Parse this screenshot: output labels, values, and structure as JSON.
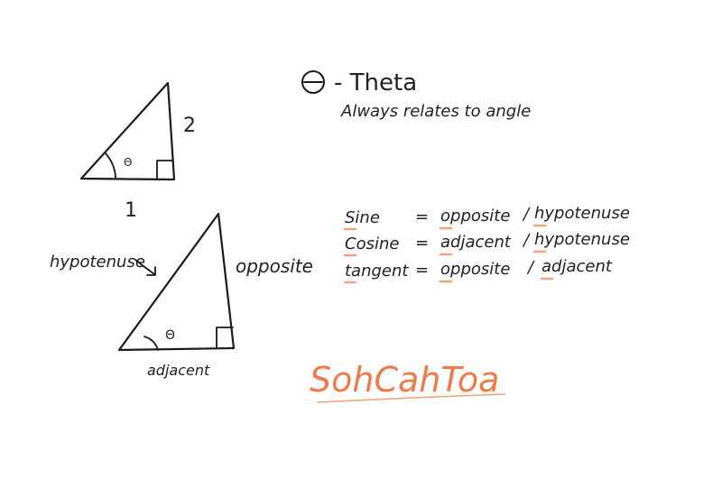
{
  "colors": {
    "ink": "#1a1a1a",
    "accent": "#f07a4a",
    "underline": "#f3a37c"
  },
  "theta_note": {
    "symbol": "Θ",
    "label": "- Theta",
    "subtitle": "Always relates to angle"
  },
  "small_triangle": {
    "angle_label": "Θ",
    "side_label": "2",
    "base_label": "1"
  },
  "large_triangle": {
    "angle_label": "Θ",
    "hypotenuse_label": "hypotenuse",
    "opposite_label": "opposite",
    "adjacent_label": "adjacent"
  },
  "formulas": [
    {
      "name": "Sine",
      "eq": "=",
      "num": "opposite",
      "slash": "/",
      "den": "hypotenuse"
    },
    {
      "name": "Cosine",
      "eq": "=",
      "num": "adjacent",
      "slash": "/",
      "den": "hypotenuse"
    },
    {
      "name": "tangent",
      "eq": "=",
      "num": "opposite",
      "slash": "/",
      "den": "adjacent"
    }
  ],
  "mnemonic": "SohCahToa"
}
